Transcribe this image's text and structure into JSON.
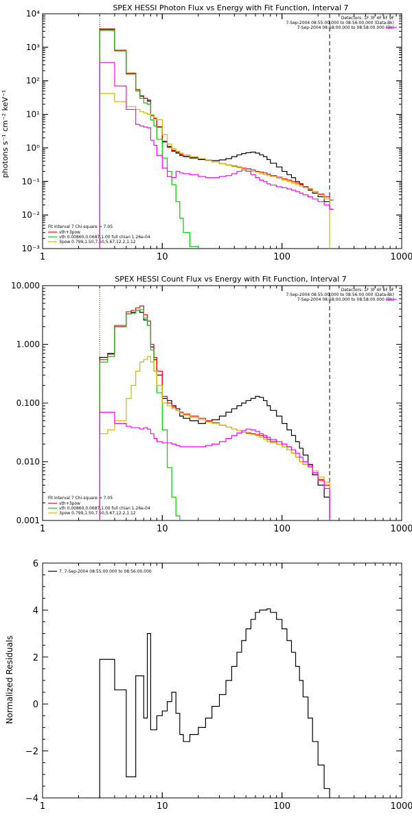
{
  "chart_data": [
    {
      "type": "line",
      "title": "SPEX HESSI Photon Flux vs Energy with Fit Function, Interval 7",
      "ylabel": "photons s⁻¹ cm⁻² keV⁻¹",
      "xlabel": "",
      "xscale": "log",
      "yscale": "log",
      "xlim": [
        1,
        1000
      ],
      "ylim": [
        0.001,
        10000
      ],
      "x_ticks": [
        "1",
        "10",
        "100",
        "1000"
      ],
      "y_ticks": [
        "10⁻³",
        "10⁻²",
        "10⁻¹",
        "10⁰",
        "10¹",
        "10²",
        "10³",
        "10⁴"
      ],
      "header_lines": [
        "Detectors: 1F 3F 4F 6F 9F",
        "7-Sep-2004 08:55:00.000 to 08:56:00.000 (Data-Bk)",
        "7-Sep-2004 08:58:00.000 to 08:58:00.000 (Bk)"
      ],
      "fit_lines": [
        "Fit Interval 7   Chi-square = 7.05",
        "vth+3pow",
        "vth 0.00860,0.0687,1.00  full chian 1.26e-04",
        "3pow 0.799,1.50,7.50,5.67,12.2,1.12"
      ],
      "vlines": [
        {
          "x": 3,
          "color": "#000000",
          "style": "dotted"
        },
        {
          "x": 3.02,
          "color": "#ff8c00",
          "style": "dotted"
        },
        {
          "x": 250,
          "color": "#000000",
          "style": "dashed"
        }
      ],
      "edges": [
        3,
        3.5,
        4,
        4.5,
        5,
        5.5,
        6,
        6.5,
        7,
        7.5,
        8,
        8.5,
        9,
        10,
        11,
        12,
        13,
        14,
        15,
        17,
        20,
        23,
        26,
        30,
        34,
        38,
        42,
        46,
        50,
        55,
        60,
        65,
        70,
        75,
        80,
        90,
        100,
        110,
        120,
        130,
        140,
        150,
        165,
        180,
        200,
        225,
        250,
        270
      ],
      "series": [
        {
          "name": "data-bk",
          "color": "#000000",
          "values": [
            3500,
            3500,
            800,
            800,
            160,
            160,
            50,
            35,
            30,
            25,
            9,
            7.5,
            4.2,
            1.5,
            1.1,
            0.8,
            0.7,
            0.6,
            0.55,
            0.5,
            0.45,
            0.43,
            0.42,
            0.44,
            0.48,
            0.55,
            0.62,
            0.68,
            0.72,
            0.75,
            0.7,
            0.62,
            0.55,
            0.45,
            0.35,
            0.27,
            0.2,
            0.16,
            0.13,
            0.1,
            0.085,
            0.07,
            0.055,
            0.045,
            0.035,
            0.025,
            0.015
          ]
        },
        {
          "name": "vth+3pow",
          "color": "#ff0000",
          "values": [
            3400,
            3400,
            820,
            820,
            170,
            170,
            55,
            36,
            30,
            27,
            9.5,
            7.7,
            4.3,
            1.6,
            1.05,
            0.85,
            0.75,
            0.65,
            0.57,
            0.52,
            0.47,
            0.42,
            0.38,
            0.34,
            0.31,
            0.29,
            0.27,
            0.25,
            0.24,
            0.22,
            0.2,
            0.19,
            0.18,
            0.165,
            0.15,
            0.135,
            0.12,
            0.11,
            0.1,
            0.09,
            0.08,
            0.07,
            0.06,
            0.05,
            0.042,
            0.035,
            0.028
          ]
        },
        {
          "name": "vth",
          "color": "#00cc00",
          "values": [
            3200,
            3200,
            780,
            780,
            160,
            160,
            50,
            30,
            22,
            20,
            6.8,
            4.5,
            1.8,
            0.5,
            0.2,
            0.08,
            0.025,
            0.008,
            0.003,
            0.00115,
            0.0008,
            0.0008,
            0.0008,
            0.0008,
            0.0008,
            0.0008,
            0.0008,
            0.0008,
            0.0008,
            0.0008,
            0.0008,
            0.0008,
            0.0008,
            0.0008,
            0.0008,
            0.0008,
            0.0008,
            0.0008,
            0.0008,
            0.0008,
            0.0008,
            0.0008,
            0.0008,
            0.0008,
            0.0008,
            0.0008,
            0.0008
          ]
        },
        {
          "name": "3pow",
          "color": "#d4b800",
          "values": [
            42,
            42,
            24,
            24,
            17,
            17,
            14,
            12,
            11,
            10,
            9,
            8,
            7,
            2.5,
            1.3,
            0.95,
            0.8,
            0.7,
            0.62,
            0.55,
            0.48,
            0.42,
            0.38,
            0.34,
            0.31,
            0.28,
            0.26,
            0.24,
            0.22,
            0.2,
            0.19,
            0.17,
            0.16,
            0.15,
            0.14,
            0.125,
            0.11,
            0.1,
            0.09,
            0.08,
            0.072,
            0.065,
            0.058,
            0.05,
            0.04,
            0.03,
            0.0008
          ]
        },
        {
          "name": "bk",
          "color": "#ff00ff",
          "values": [
            350,
            350,
            70,
            70,
            14,
            14,
            5,
            4.5,
            4.2,
            4,
            1.7,
            1.2,
            0.6,
            0.25,
            0.14,
            0.13,
            0.2,
            0.18,
            0.17,
            0.16,
            0.14,
            0.13,
            0.13,
            0.14,
            0.15,
            0.17,
            0.2,
            0.22,
            0.2,
            0.16,
            0.13,
            0.11,
            0.1,
            0.085,
            0.078,
            0.07,
            0.065,
            0.06,
            0.055,
            0.05,
            0.045,
            0.04,
            0.035,
            0.03,
            0.025,
            0.02,
            0.015
          ]
        }
      ]
    },
    {
      "type": "line",
      "title": "SPEX HESSI Count Flux vs Energy with Fit Function, Interval 7",
      "ylabel": "",
      "xlabel": "",
      "xscale": "log",
      "yscale": "log",
      "xlim": [
        1,
        1000
      ],
      "ylim": [
        0.001,
        10
      ],
      "x_ticks": [
        "1",
        "10",
        "100",
        "1000"
      ],
      "y_ticks": [
        "0.001",
        "0.010",
        "0.100",
        "1.000",
        "10.000"
      ],
      "header_lines": [
        "Detectors: 1F 3F 4F 6F 9F",
        "7-Sep-2004 08:55:00.000 to 08:56:00.000 (Data-Bk)",
        "7-Sep-2004 08:58:00.000 to 08:58:00.000 (Bk)"
      ],
      "fit_lines": [
        "Fit Interval 7   Chi-square = 7.05",
        "vth+3pow",
        "vth 0.00860,0.0687,1.00  full chian 1.26e-04",
        "3pow 0.799,1.50,7.50,5.67,12.2,1.12"
      ],
      "vlines": [
        {
          "x": 3,
          "color": "#000000",
          "style": "dotted"
        },
        {
          "x": 3.02,
          "color": "#ff8c00",
          "style": "dotted"
        },
        {
          "x": 250,
          "color": "#000000",
          "style": "dashed"
        }
      ],
      "edges": [
        3,
        3.5,
        4,
        4.5,
        5,
        5.5,
        6,
        6.5,
        7,
        7.5,
        8,
        8.5,
        9,
        10,
        11,
        12,
        13,
        14,
        15,
        17,
        20,
        23,
        26,
        30,
        34,
        38,
        42,
        46,
        50,
        55,
        60,
        65,
        70,
        75,
        80,
        90,
        100,
        110,
        120,
        130,
        140,
        150,
        165,
        180,
        200,
        225,
        250,
        270
      ],
      "series": [
        {
          "name": "data-bk",
          "color": "#000000",
          "values": [
            0.6,
            0.7,
            2,
            2,
            3.3,
            3.5,
            3.8,
            3.5,
            2.6,
            2.1,
            0.9,
            0.55,
            0.3,
            0.12,
            0.11,
            0.09,
            0.08,
            0.06,
            0.055,
            0.05,
            0.045,
            0.048,
            0.052,
            0.06,
            0.07,
            0.08,
            0.09,
            0.1,
            0.11,
            0.12,
            0.13,
            0.125,
            0.11,
            0.09,
            0.075,
            0.06,
            0.045,
            0.035,
            0.028,
            0.022,
            0.017,
            0.013,
            0.009,
            0.006,
            0.004,
            0.0025,
            0.0008
          ]
        },
        {
          "name": "vth+3pow",
          "color": "#ff0000",
          "values": [
            0.55,
            0.68,
            2.1,
            2.1,
            3.6,
            3.8,
            4.2,
            4.5,
            3.2,
            2.5,
            1,
            0.6,
            0.35,
            0.13,
            0.1,
            0.085,
            0.075,
            0.07,
            0.065,
            0.06,
            0.055,
            0.05,
            0.046,
            0.042,
            0.039,
            0.036,
            0.034,
            0.032,
            0.031,
            0.03,
            0.029,
            0.028,
            0.026,
            0.024,
            0.022,
            0.02,
            0.018,
            0.016,
            0.014,
            0.012,
            0.01,
            0.009,
            0.008,
            0.0065,
            0.005,
            0.004,
            0.0008
          ]
        },
        {
          "name": "vth",
          "color": "#00cc00",
          "values": [
            0.5,
            0.62,
            2,
            2,
            3.3,
            3.4,
            3.8,
            3.9,
            2.8,
            2.1,
            0.8,
            0.35,
            0.15,
            0.035,
            0.008,
            0.0025,
            0.0012,
            0.0008,
            0.0008,
            0.0008,
            0.0008,
            0.0008,
            0.0008,
            0.0008,
            0.0008,
            0.0008,
            0.0008,
            0.0008,
            0.0008,
            0.0008,
            0.0008,
            0.0008,
            0.0008,
            0.0008,
            0.0008,
            0.0008,
            0.0008,
            0.0008,
            0.0008,
            0.0008,
            0.0008,
            0.0008,
            0.0008,
            0.0008,
            0.0008,
            0.0008,
            0.0008
          ]
        },
        {
          "name": "3pow",
          "color": "#d4b800",
          "values": [
            0.03,
            0.035,
            0.05,
            0.05,
            0.12,
            0.2,
            0.35,
            0.5,
            0.55,
            0.62,
            0.5,
            0.35,
            0.2,
            0.1,
            0.09,
            0.08,
            0.075,
            0.068,
            0.062,
            0.057,
            0.052,
            0.048,
            0.045,
            0.042,
            0.039,
            0.036,
            0.034,
            0.032,
            0.03,
            0.029,
            0.028,
            0.026,
            0.024,
            0.022,
            0.021,
            0.02,
            0.018,
            0.016,
            0.014,
            0.012,
            0.01,
            0.009,
            0.008,
            0.007,
            0.0055,
            0.0045,
            0.0008
          ]
        },
        {
          "name": "bk",
          "color": "#ff00ff",
          "values": [
            0.07,
            0.07,
            0.045,
            0.045,
            0.04,
            0.038,
            0.038,
            0.036,
            0.038,
            0.036,
            0.03,
            0.025,
            0.022,
            0.021,
            0.021,
            0.02,
            0.019,
            0.018,
            0.018,
            0.018,
            0.018,
            0.019,
            0.02,
            0.022,
            0.025,
            0.028,
            0.031,
            0.034,
            0.036,
            0.035,
            0.033,
            0.03,
            0.028,
            0.026,
            0.024,
            0.022,
            0.02,
            0.018,
            0.016,
            0.014,
            0.012,
            0.01,
            0.0085,
            0.0065,
            0.0048,
            0.0035,
            0.0008
          ]
        }
      ]
    },
    {
      "type": "line",
      "title": "",
      "ylabel": "Normalized Residuals",
      "xlabel": "",
      "xscale": "log",
      "yscale": "linear",
      "xlim": [
        1,
        1000
      ],
      "ylim": [
        -4,
        6
      ],
      "x_ticks": [
        "1",
        "10",
        "100",
        "1000"
      ],
      "y_ticks": [
        "−4",
        "−2",
        "0",
        "2",
        "4",
        "6"
      ],
      "legend": "7.  7-Sep-2004 08:55:00.000 to 08:56:00.000",
      "edges": [
        3,
        3.5,
        4,
        4.5,
        5,
        5.5,
        6,
        6.5,
        7,
        7.5,
        8,
        8.5,
        9,
        10,
        11,
        12,
        13,
        14,
        15,
        17,
        20,
        23,
        26,
        30,
        34,
        38,
        42,
        46,
        50,
        55,
        60,
        65,
        70,
        75,
        80,
        90,
        100,
        110,
        120,
        130,
        140,
        150,
        165,
        180,
        200,
        225,
        250
      ],
      "series": [
        {
          "name": "residuals",
          "color": "#000000",
          "values": [
            1.9,
            1.9,
            0.6,
            0.6,
            -3.1,
            -3.1,
            1.2,
            1.2,
            -0.6,
            3.0,
            -1.1,
            -1.1,
            -0.5,
            -0.3,
            0.1,
            0.5,
            -0.4,
            -1.3,
            -1.6,
            -1.3,
            -1.0,
            -0.6,
            -0.1,
            0.4,
            1.0,
            1.6,
            2.2,
            2.7,
            3.2,
            3.6,
            3.9,
            4.0,
            4.0,
            4.05,
            3.9,
            3.6,
            3.2,
            2.7,
            2.2,
            1.6,
            1.0,
            0.3,
            -0.6,
            -1.6,
            -2.6,
            -3.6,
            -4.2
          ]
        }
      ]
    }
  ]
}
